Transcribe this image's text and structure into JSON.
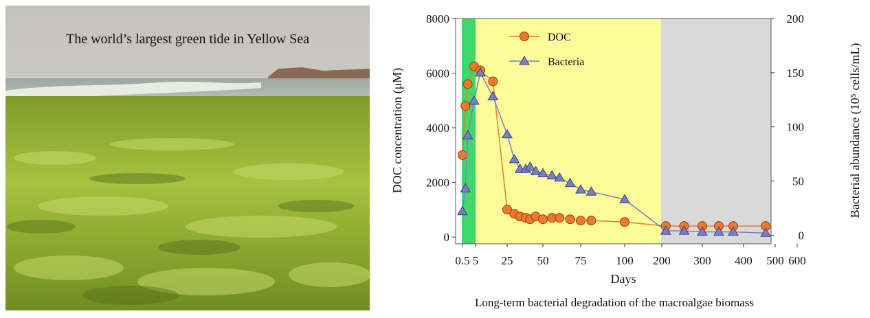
{
  "photo": {
    "caption": "The world’s largest green tide in Yellow Sea"
  },
  "chart_data": {
    "type": "line",
    "caption": "Long-term bacterial degradation of the macroalgae biomass",
    "x_label": "Days",
    "y_label": "DOC concentration (μM)",
    "y2_label": "Bacterial abundance (10⁵ cells/mL)",
    "x": [
      0.5,
      1.5,
      2.3,
      4.5,
      8,
      16,
      25,
      30,
      34,
      38,
      41,
      45,
      50,
      56,
      61,
      68,
      75,
      81,
      100,
      210,
      255,
      300,
      340,
      375,
      470
    ],
    "series": [
      {
        "name": "DOC",
        "color": "#ec7a2c",
        "marker": "circle",
        "values": [
          3000,
          4800,
          5600,
          6250,
          6100,
          5700,
          1000,
          850,
          750,
          700,
          650,
          750,
          650,
          700,
          700,
          650,
          600,
          600,
          550,
          400,
          400,
          400,
          400,
          400,
          400
        ]
      },
      {
        "name": "Bacteria",
        "color": "#7b80bd",
        "marker": "triangle",
        "axis": "y2",
        "values": [
          22,
          43,
          92,
          124,
          150,
          128,
          93,
          70,
          61,
          61,
          63,
          59,
          57,
          55,
          53,
          48,
          42,
          40,
          33,
          4,
          4,
          3,
          3,
          3,
          2
        ]
      }
    ],
    "xticks": [
      0.5,
      5,
      25,
      50,
      75,
      100,
      200,
      300,
      400,
      500,
      600
    ],
    "ylim": [
      -250,
      8000
    ],
    "yticks": [
      0,
      2000,
      4000,
      6000,
      8000
    ],
    "y2lim": [
      -8,
      200
    ],
    "y2ticks": [
      0,
      50,
      100,
      150,
      200
    ],
    "legend": "upper left"
  }
}
